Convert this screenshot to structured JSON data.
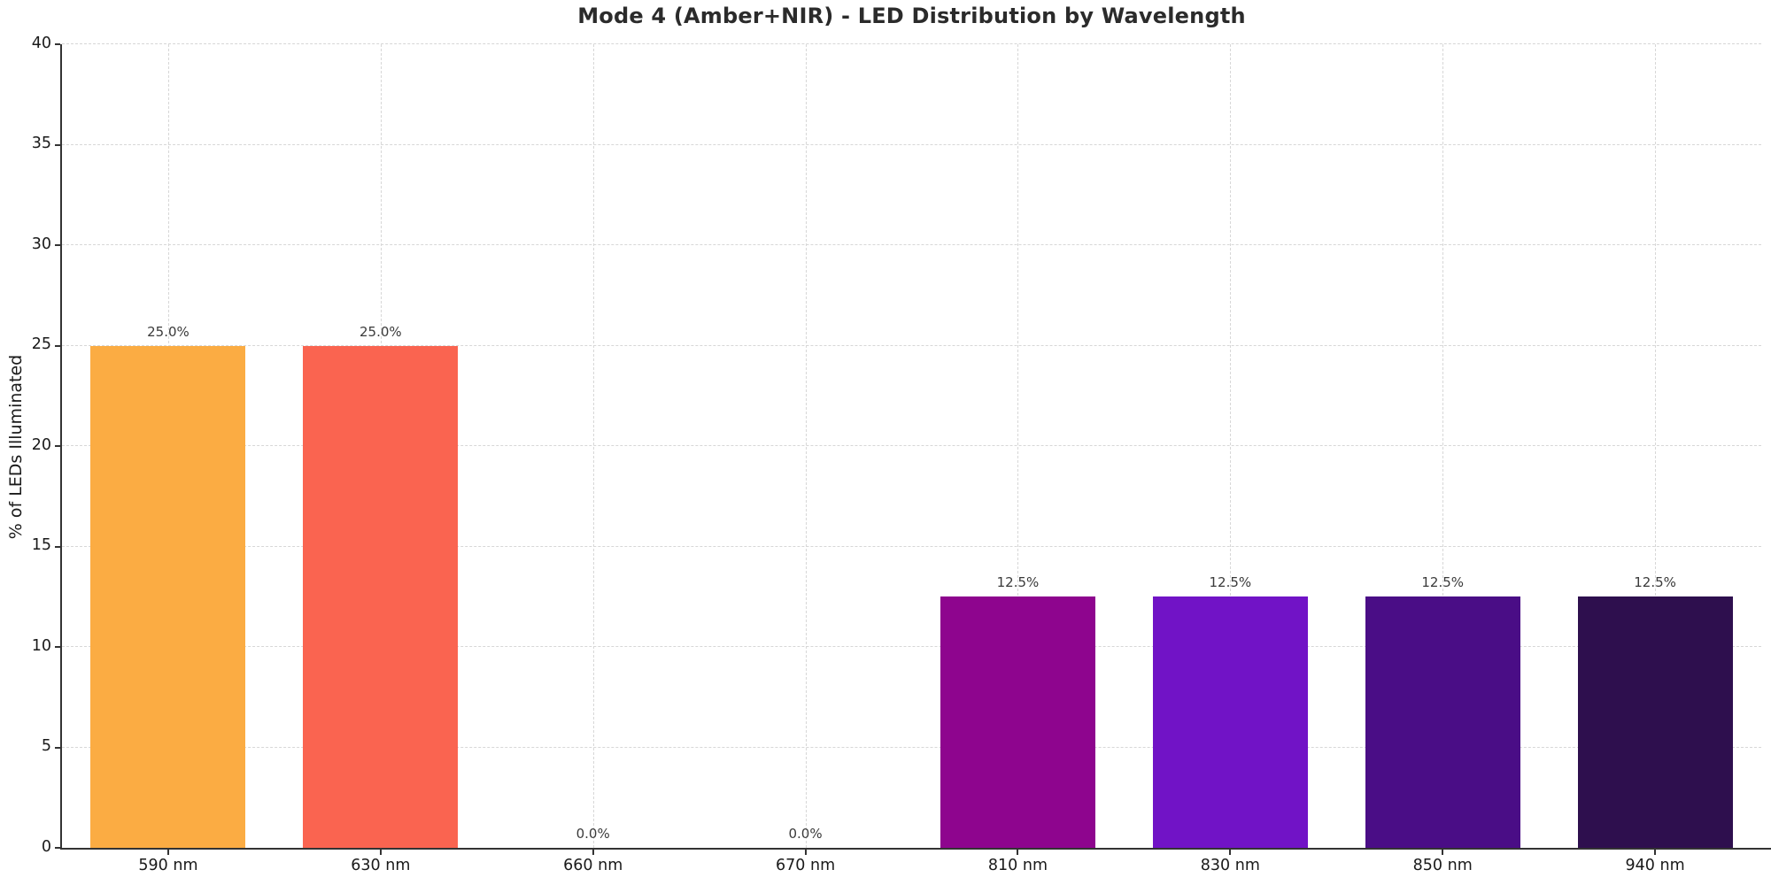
{
  "title": "Mode 4 (Amber+NIR) - LED Distribution by Wavelength",
  "chart_data": {
    "type": "bar",
    "title": "Mode 4 (Amber+NIR) - LED Distribution by Wavelength",
    "xlabel": "",
    "ylabel": "% of LEDs Illuminated",
    "categories": [
      "590 nm",
      "630 nm",
      "660 nm",
      "670 nm",
      "810 nm",
      "830 nm",
      "850 nm",
      "940 nm"
    ],
    "values": [
      25.0,
      25.0,
      0.0,
      0.0,
      12.5,
      12.5,
      12.5,
      12.5
    ],
    "value_labels": [
      "25.0%",
      "25.0%",
      "0.0%",
      "0.0%",
      "12.5%",
      "12.5%",
      "12.5%",
      "12.5%"
    ],
    "bar_colors": [
      "#fbac43",
      "#fa6450",
      "#8e058e",
      "#7113c6",
      "#4a0d86",
      "#2e0f4e"
    ],
    "bar_color_per_category": [
      "#fbac43",
      "#fa6450",
      "#cccccc",
      "#cccccc",
      "#8e058e",
      "#7113c6",
      "#4a0d86",
      "#2e0f4e"
    ],
    "ylim": [
      0,
      40
    ],
    "yticks": [
      0,
      5,
      10,
      15,
      20,
      25,
      30,
      35,
      40
    ],
    "grid": "dashed-both-axes",
    "legend_position": "none",
    "background_color": "#ffffff"
  }
}
